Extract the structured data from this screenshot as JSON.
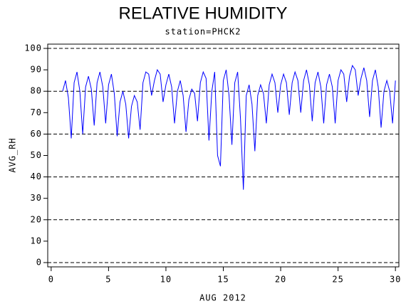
{
  "chart_data": {
    "type": "line",
    "title": "RELATIVE HUMIDITY",
    "subtitle": "station=PHCK2",
    "x_label": "AUG 2012",
    "y_label": "AVG_RH",
    "xlim": [
      -0.3,
      30.3
    ],
    "ylim": [
      -2,
      102
    ],
    "xticks": [
      0,
      5,
      10,
      15,
      20,
      25,
      30
    ],
    "yticks": [
      0,
      10,
      20,
      30,
      40,
      50,
      60,
      70,
      80,
      90,
      100
    ],
    "reference_lines": [
      0,
      20,
      40,
      60,
      80,
      100
    ],
    "x": [
      1,
      1.25,
      1.5,
      1.75,
      2,
      2.25,
      2.5,
      2.75,
      3,
      3.25,
      3.5,
      3.75,
      4,
      4.25,
      4.5,
      4.75,
      5,
      5.25,
      5.5,
      5.75,
      6,
      6.25,
      6.5,
      6.75,
      7,
      7.25,
      7.5,
      7.75,
      8,
      8.25,
      8.5,
      8.75,
      9,
      9.25,
      9.5,
      9.75,
      10,
      10.25,
      10.5,
      10.75,
      11,
      11.25,
      11.5,
      11.75,
      12,
      12.25,
      12.5,
      12.75,
      13,
      13.25,
      13.5,
      13.75,
      14,
      14.25,
      14.5,
      14.75,
      15,
      15.25,
      15.5,
      15.75,
      16,
      16.25,
      16.5,
      16.75,
      17,
      17.25,
      17.5,
      17.75,
      18,
      18.25,
      18.5,
      18.75,
      19,
      19.25,
      19.5,
      19.75,
      20,
      20.25,
      20.5,
      20.75,
      21,
      21.25,
      21.5,
      21.75,
      22,
      22.25,
      22.5,
      22.75,
      23,
      23.25,
      23.5,
      23.75,
      24,
      24.25,
      24.5,
      24.75,
      25,
      25.25,
      25.5,
      25.75,
      26,
      26.25,
      26.5,
      26.75,
      27,
      27.25,
      27.5,
      27.75,
      28,
      28.25,
      28.5,
      28.75,
      29,
      29.25,
      29.5,
      29.75,
      30
    ],
    "series": [
      {
        "name": "AVG_RH",
        "color": "#0000ff",
        "values": [
          80,
          85,
          77,
          58,
          84,
          89,
          80,
          60,
          82,
          87,
          81,
          64,
          84,
          89,
          82,
          65,
          83,
          88,
          79,
          59,
          75,
          80,
          74,
          58,
          73,
          78,
          75,
          62,
          84,
          89,
          88,
          78,
          85,
          90,
          88,
          75,
          83,
          88,
          82,
          65,
          80,
          85,
          78,
          61,
          76,
          81,
          79,
          66,
          84,
          89,
          86,
          57,
          80,
          89,
          50,
          45,
          85,
          90,
          78,
          55,
          84,
          89,
          67,
          34,
          78,
          83,
          74,
          52,
          78,
          83,
          79,
          65,
          83,
          88,
          84,
          70,
          83,
          88,
          84,
          69,
          84,
          89,
          85,
          70,
          85,
          90,
          83,
          66,
          84,
          89,
          82,
          65,
          83,
          88,
          82,
          65,
          85,
          90,
          88,
          75,
          87,
          92,
          90,
          78,
          86,
          91,
          85,
          68,
          85,
          90,
          82,
          63,
          80,
          85,
          80,
          65,
          85
        ]
      }
    ]
  }
}
